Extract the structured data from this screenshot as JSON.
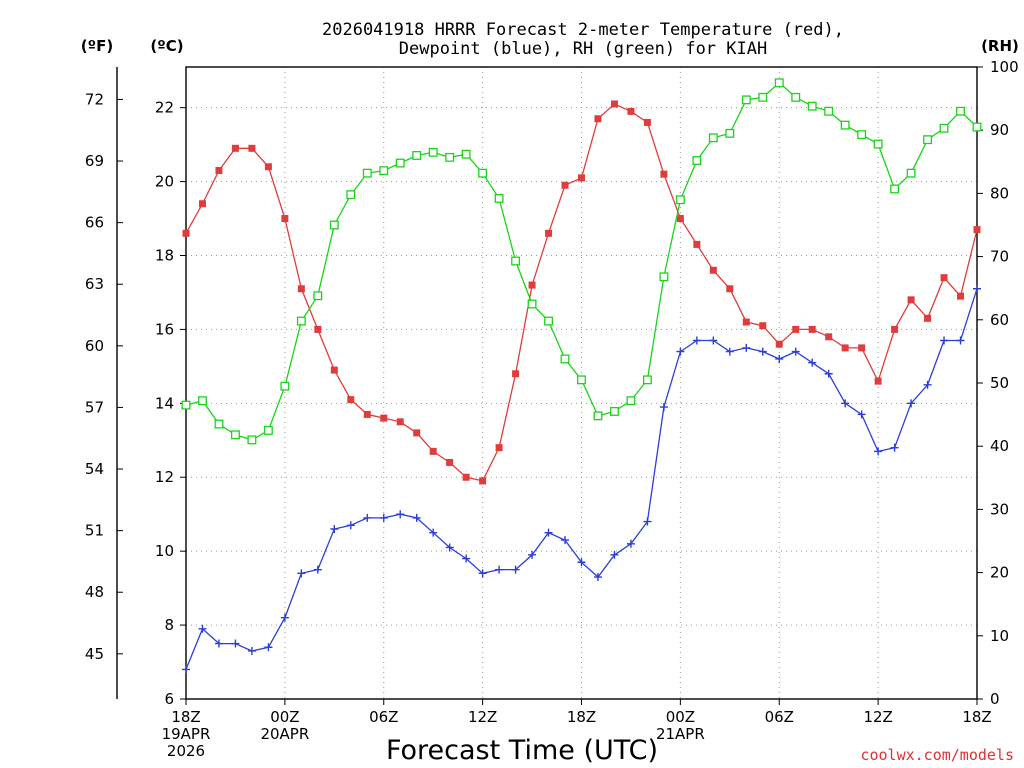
{
  "chart_data": {
    "type": "line",
    "title": [
      "2026041918 HRRR Forecast 2-meter Temperature (red),",
      "Dewpoint (blue), RH (green) for KIAH"
    ],
    "xlabel": "Forecast Time (UTC)",
    "credit": "coolwx.com/models",
    "units": {
      "fahrenheit": "(ºF)",
      "celsius": "(ºC)",
      "rh": "(RH)"
    },
    "x_ticks": [
      {
        "hour": 0,
        "lines": [
          "18Z",
          "19APR",
          "2026"
        ]
      },
      {
        "hour": 6,
        "lines": [
          "00Z",
          "20APR"
        ]
      },
      {
        "hour": 12,
        "lines": [
          "06Z"
        ]
      },
      {
        "hour": 18,
        "lines": [
          "12Z"
        ]
      },
      {
        "hour": 24,
        "lines": [
          "18Z"
        ]
      },
      {
        "hour": 30,
        "lines": [
          "00Z",
          "21APR"
        ]
      },
      {
        "hour": 36,
        "lines": [
          "06Z"
        ]
      },
      {
        "hour": 42,
        "lines": [
          "12Z"
        ]
      },
      {
        "hour": 48,
        "lines": [
          "18Z"
        ]
      }
    ],
    "xlim": [
      0,
      48
    ],
    "ylim_c": [
      6,
      23.1
    ],
    "ylim_rh": [
      0,
      100
    ],
    "y_ticks_c": [
      6,
      8,
      10,
      12,
      14,
      16,
      18,
      20,
      22
    ],
    "y_ticks_f": [
      45,
      48,
      51,
      54,
      57,
      60,
      63,
      66,
      69,
      72
    ],
    "y_ticks_rh": [
      0,
      10,
      20,
      30,
      40,
      50,
      60,
      70,
      80,
      90,
      100
    ],
    "series": [
      {
        "name": "Temperature",
        "color": "#e03c3c",
        "marker": "filled-square",
        "axis": "celsius",
        "values": [
          18.6,
          19.4,
          20.3,
          20.9,
          20.9,
          20.4,
          19.0,
          17.1,
          16.0,
          14.9,
          14.1,
          13.7,
          13.6,
          13.5,
          13.2,
          12.7,
          12.4,
          12.0,
          11.9,
          12.8,
          14.8,
          17.2,
          18.6,
          19.9,
          20.1,
          21.7,
          22.1,
          21.9,
          21.6,
          20.2,
          19.0,
          18.3,
          17.6,
          17.1,
          16.2,
          16.1,
          15.6,
          16.0,
          16.0,
          15.8,
          15.5,
          15.5,
          14.6,
          16.0,
          16.8,
          16.3,
          17.4,
          16.9,
          18.7
        ]
      },
      {
        "name": "Dewpoint",
        "color": "#2a3fd8",
        "marker": "plus",
        "axis": "celsius",
        "values": [
          6.8,
          7.9,
          7.5,
          7.5,
          7.3,
          7.4,
          8.2,
          9.4,
          9.5,
          10.6,
          10.7,
          10.9,
          10.9,
          11.0,
          10.9,
          10.5,
          10.1,
          9.8,
          9.4,
          9.5,
          9.5,
          9.9,
          10.5,
          10.3,
          9.7,
          9.3,
          9.9,
          10.2,
          10.8,
          13.9,
          15.4,
          15.7,
          15.7,
          15.4,
          15.5,
          15.4,
          15.2,
          15.4,
          15.1,
          14.8,
          14.0,
          13.7,
          12.7,
          12.8,
          14.0,
          14.5,
          15.7,
          15.7,
          17.1
        ]
      },
      {
        "name": "RH",
        "color": "#1ad41a",
        "marker": "open-square",
        "axis": "rh",
        "values": [
          46.5,
          47.2,
          43.5,
          41.8,
          41.0,
          42.5,
          49.5,
          59.8,
          63.8,
          75.0,
          79.8,
          83.2,
          83.6,
          84.8,
          86.0,
          86.5,
          85.7,
          86.2,
          83.2,
          79.2,
          69.3,
          62.5,
          59.8,
          53.8,
          50.5,
          44.8,
          45.5,
          47.2,
          50.5,
          66.8,
          79.0,
          85.2,
          88.8,
          89.5,
          94.8,
          95.2,
          97.5,
          95.2,
          93.8,
          93.0,
          90.8,
          89.3,
          87.8,
          80.7,
          83.2,
          88.5,
          90.3,
          93.0,
          90.5
        ]
      }
    ]
  }
}
